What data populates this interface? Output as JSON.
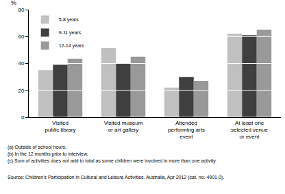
{
  "chart_data": {
    "type": "bar",
    "ylabel": "%",
    "categories": [
      "Visited\npublic library",
      "Visited museum\nor art gallery",
      "Attended\nperforming arts\nevent",
      "At least one\nselected venue\nor event"
    ],
    "series": [
      {
        "name": "5-8 years",
        "color": "#c0c0c0",
        "values": [
          35,
          51.5,
          22,
          62
        ]
      },
      {
        "name": "9-11 years",
        "color": "#3f3f3f",
        "values": [
          39,
          40,
          30,
          61
        ]
      },
      {
        "name": "12-14 years",
        "color": "#999999",
        "values": [
          43.5,
          45,
          27,
          65
        ]
      }
    ],
    "ylim": [
      0,
      80
    ],
    "yticks": [
      0,
      20,
      40,
      60,
      80
    ],
    "grid": true,
    "legend": "top-left",
    "notes": [
      "(a) Outside of school hours.",
      "(b) In the 12 months prior to interview.",
      "(c) Sum of activities does not add to total as some children were involved in more than one activity."
    ],
    "source": "Source: Children's Participation in Cultural and Leisure Activities, Australia, Apr 2012 (cat. no. 4901.0)."
  }
}
